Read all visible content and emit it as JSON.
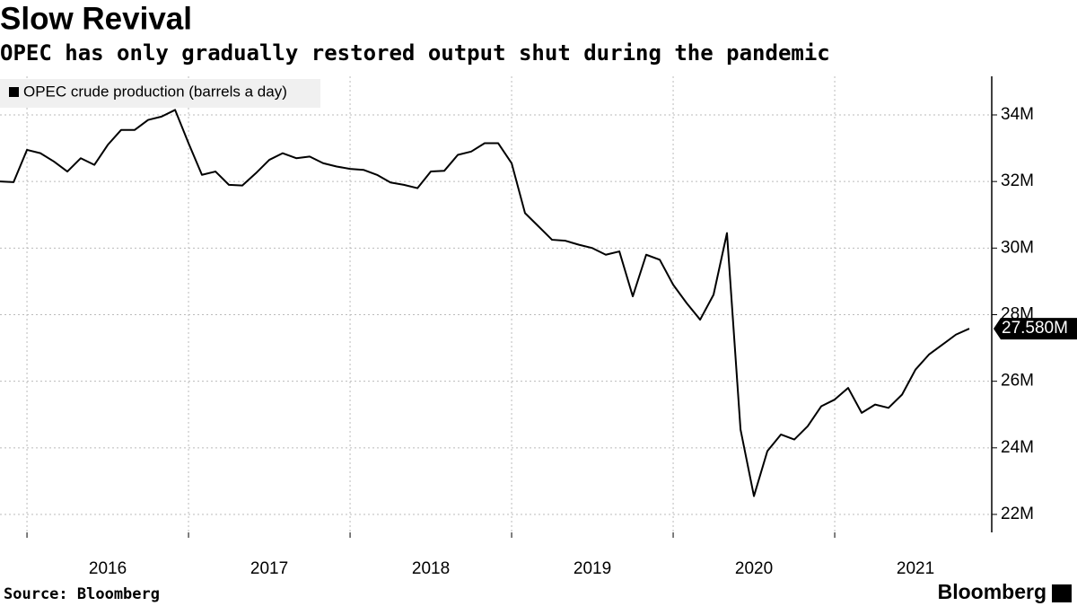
{
  "chart_data": {
    "type": "line",
    "title": "Slow Revival",
    "subtitle": "OPEC has only gradually restored output shut during the pandemic",
    "source": "Source: Bloomberg",
    "brand": "Bloomberg",
    "x": [
      2015.833,
      2015.917,
      2016.0,
      2016.083,
      2016.167,
      2016.25,
      2016.333,
      2016.417,
      2016.5,
      2016.583,
      2016.667,
      2016.75,
      2016.833,
      2016.917,
      2017.0,
      2017.083,
      2017.167,
      2017.25,
      2017.333,
      2017.417,
      2017.5,
      2017.583,
      2017.667,
      2017.75,
      2017.833,
      2017.917,
      2018.0,
      2018.083,
      2018.167,
      2018.25,
      2018.333,
      2018.417,
      2018.5,
      2018.583,
      2018.667,
      2018.75,
      2018.833,
      2018.917,
      2019.0,
      2019.083,
      2019.167,
      2019.25,
      2019.333,
      2019.417,
      2019.5,
      2019.583,
      2019.667,
      2019.75,
      2019.833,
      2019.917,
      2020.0,
      2020.083,
      2020.167,
      2020.25,
      2020.333,
      2020.417,
      2020.5,
      2020.583,
      2020.667,
      2020.75,
      2020.833,
      2020.917,
      2021.0,
      2021.083,
      2021.167,
      2021.25,
      2021.333,
      2021.417,
      2021.5,
      2021.583,
      2021.667,
      2021.75,
      2021.833
    ],
    "series": [
      {
        "name": "OPEC crude production (barrels a day)",
        "color": "#000000",
        "values": [
          32000000,
          31980000,
          32950000,
          32850000,
          32600000,
          32300000,
          32700000,
          32500000,
          33100000,
          33550000,
          33550000,
          33850000,
          33950000,
          34150000,
          33150000,
          32200000,
          32300000,
          31900000,
          31880000,
          32250000,
          32650000,
          32850000,
          32700000,
          32750000,
          32550000,
          32450000,
          32380000,
          32350000,
          32200000,
          31970000,
          31900000,
          31800000,
          32300000,
          32320000,
          32800000,
          32900000,
          33150000,
          33150000,
          32550000,
          31050000,
          30650000,
          30250000,
          30220000,
          30100000,
          30000000,
          29800000,
          29900000,
          28550000,
          29800000,
          29650000,
          28900000,
          28350000,
          27850000,
          28600000,
          30450000,
          24550000,
          22550000,
          23900000,
          24400000,
          24250000,
          24650000,
          25250000,
          25450000,
          25800000,
          25050000,
          25300000,
          25200000,
          25600000,
          26350000,
          26800000,
          27100000,
          27400000,
          27580000
        ],
        "value_labels": [
          null,
          null,
          null,
          null,
          null,
          null,
          null,
          null,
          null,
          null,
          null,
          null,
          null,
          null,
          null,
          null,
          null,
          null,
          null,
          null,
          null,
          null,
          null,
          null,
          null,
          null,
          null,
          null,
          null,
          null,
          null,
          null,
          null,
          null,
          null,
          null,
          null,
          null,
          null,
          null,
          null,
          null,
          null,
          null,
          null,
          null,
          null,
          null,
          null,
          null,
          null,
          null,
          null,
          null,
          null,
          null,
          null,
          null,
          null,
          null,
          null,
          null,
          null,
          null,
          null,
          null,
          null,
          null,
          null,
          null,
          null,
          null,
          "27.580M"
        ]
      }
    ],
    "xlim": [
      2015.833,
      2021.972
    ],
    "xticks": [
      2016,
      2017,
      2018,
      2019,
      2020,
      2021
    ],
    "ylim": [
      21460000,
      35160000
    ],
    "yticks": [
      {
        "value": 22000000,
        "label": "22M"
      },
      {
        "value": 24000000,
        "label": "24M"
      },
      {
        "value": 26000000,
        "label": "26M"
      },
      {
        "value": 28000000,
        "label": "28M"
      },
      {
        "value": 30000000,
        "label": "30M"
      },
      {
        "value": 32000000,
        "label": "32M"
      },
      {
        "value": 34000000,
        "label": "34M"
      }
    ],
    "grid": true,
    "legend": "top-left"
  }
}
